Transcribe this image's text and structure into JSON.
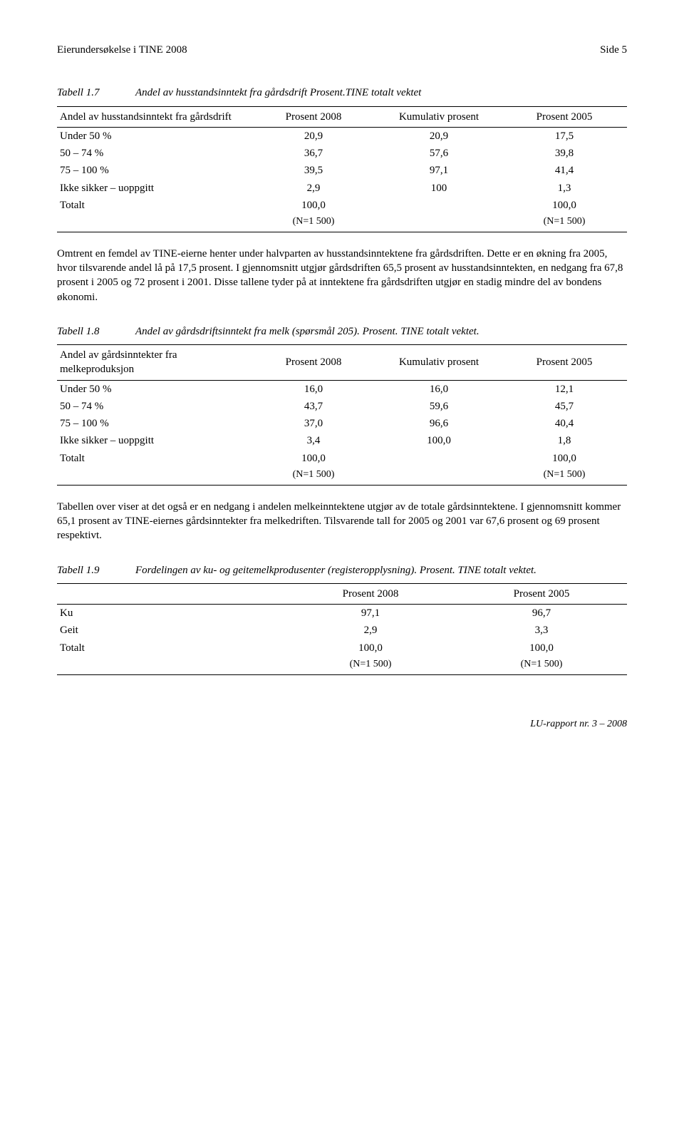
{
  "header": {
    "left": "Eierundersøkelse i TINE 2008",
    "right": "Side 5"
  },
  "table1": {
    "label": "Tabell 1.7",
    "desc": "Andel av husstandsinntekt fra gårdsdrift Prosent.TINE totalt vektet",
    "head": {
      "c0": "Andel av husstandsinntekt fra gårdsdrift",
      "c1": "Prosent 2008",
      "c2": "Kumulativ prosent",
      "c3": "Prosent 2005"
    },
    "rows": [
      {
        "c0": "Under 50 %",
        "c1": "20,9",
        "c2": "20,9",
        "c3": "17,5"
      },
      {
        "c0": "50 – 74 %",
        "c1": "36,7",
        "c2": "57,6",
        "c3": "39,8"
      },
      {
        "c0": "75 – 100 %",
        "c1": "39,5",
        "c2": "97,1",
        "c3": "41,4"
      },
      {
        "c0": "Ikke sikker – uoppgitt",
        "c1": "2,9",
        "c2": "100",
        "c3": "1,3"
      }
    ],
    "total": {
      "c0": "Totalt",
      "c1": "100,0",
      "c2": "",
      "c3": "100,0"
    },
    "totaln": {
      "c1": "(N=1 500)",
      "c3": "(N=1 500)"
    }
  },
  "para1": "Omtrent en femdel av TINE-eierne henter under halvparten av husstandsinntektene fra gårdsdriften. Dette er en økning fra 2005, hvor tilsvarende andel lå på 17,5 prosent. I gjennomsnitt utgjør gårdsdriften 65,5 prosent av husstandsinntekten, en nedgang fra 67,8 prosent i 2005 og 72 prosent i 2001. Disse tallene tyder på at inntektene fra gårdsdriften utgjør en stadig mindre del av bondens økonomi.",
  "table2": {
    "label": "Tabell 1.8",
    "desc": "Andel av gårdsdriftsinntekt fra melk (spørsmål 205). Prosent. TINE totalt vektet.",
    "head": {
      "c0": "Andel av gårdsinntekter fra melkeproduksjon",
      "c1": "Prosent 2008",
      "c2": "Kumulativ prosent",
      "c3": "Prosent 2005"
    },
    "rows": [
      {
        "c0": "Under 50 %",
        "c1": "16,0",
        "c2": "16,0",
        "c3": "12,1"
      },
      {
        "c0": "50 – 74 %",
        "c1": "43,7",
        "c2": "59,6",
        "c3": "45,7"
      },
      {
        "c0": "75 – 100 %",
        "c1": "37,0",
        "c2": "96,6",
        "c3": "40,4"
      },
      {
        "c0": "Ikke sikker – uoppgitt",
        "c1": "3,4",
        "c2": "100,0",
        "c3": "1,8"
      }
    ],
    "total": {
      "c0": "Totalt",
      "c1": "100,0",
      "c2": "",
      "c3": "100,0"
    },
    "totaln": {
      "c1": "(N=1 500)",
      "c3": "(N=1 500)"
    }
  },
  "para2": "Tabellen over viser at det også er en nedgang i andelen melkeinntektene utgjør av de totale gårdsinntektene. I gjennomsnitt kommer 65,1 prosent av TINE-eiernes gårdsinntekter fra melkedriften. Tilsvarende tall for 2005 og 2001 var 67,6 prosent og 69 prosent respektivt.",
  "table3": {
    "label": "Tabell 1.9",
    "desc": "Fordelingen av ku- og geitemelkprodusenter (registeropplysning). Prosent. TINE totalt vektet.",
    "head": {
      "c0": "",
      "c1": "Prosent 2008",
      "c2": "Prosent 2005"
    },
    "rows": [
      {
        "c0": "Ku",
        "c1": "97,1",
        "c2": "96,7"
      },
      {
        "c0": "Geit",
        "c1": "2,9",
        "c2": "3,3"
      }
    ],
    "total": {
      "c0": "Totalt",
      "c1": "100,0",
      "c2": "100,0"
    },
    "totaln": {
      "c1": "(N=1 500)",
      "c2": "(N=1 500)"
    }
  },
  "footer": "LU-rapport nr. 3 – 2008"
}
